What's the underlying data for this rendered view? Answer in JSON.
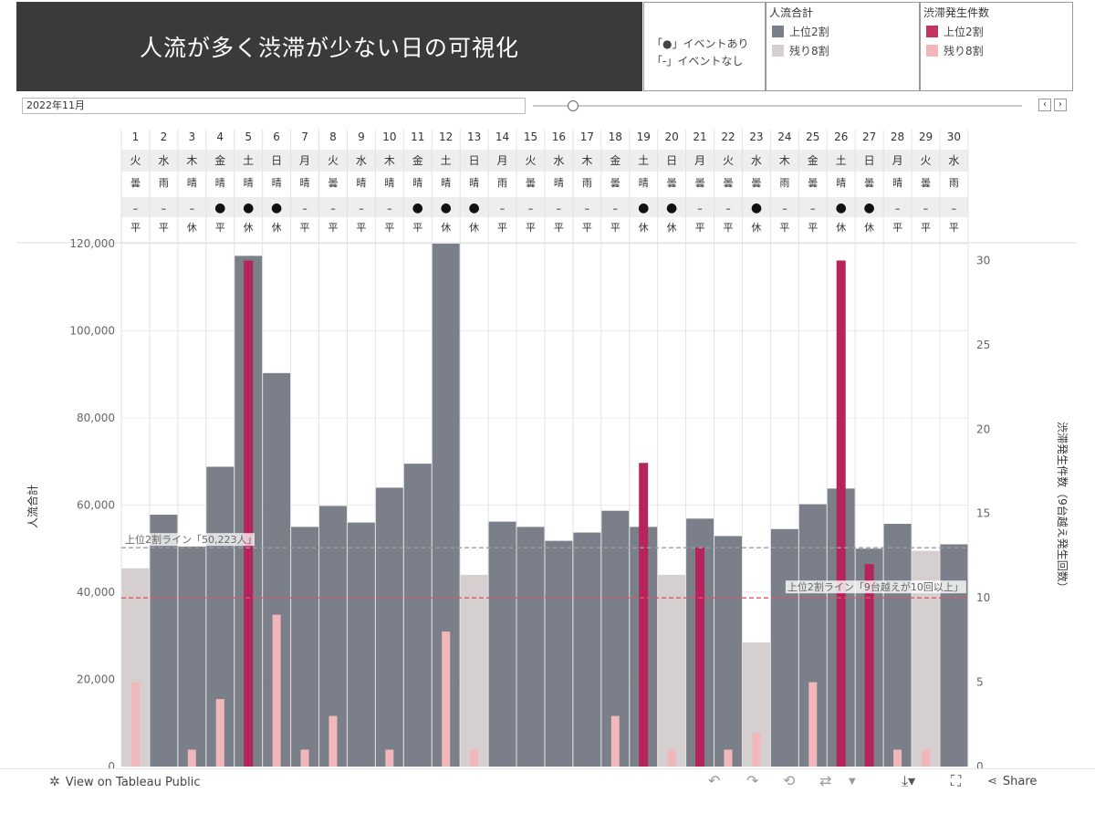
{
  "header": {
    "title": "人流が多く渋滞が少ない日の可視化",
    "event_legend": {
      "with_event": "「●」イベントあり",
      "without_event": "「-」イベントなし"
    },
    "people_legend": {
      "title": "人流合計",
      "top": "上位2割",
      "rest": "残り8割"
    },
    "traffic_legend": {
      "title": "渋滞発生件数",
      "top": "上位2割",
      "rest": "残り8割"
    }
  },
  "filter": {
    "month": "2022年11月",
    "prev_icon": "‹",
    "next_icon": "›"
  },
  "colors": {
    "people_top": "#7b7f89",
    "people_rest": "#d5cfcf",
    "traffic_top": "#b5245a",
    "traffic_rest": "#f2b7bb",
    "line_people": "#9a9ea5",
    "line_traffic": "#e0566a"
  },
  "chart_data": {
    "type": "bar",
    "categories": [
      "1",
      "2",
      "3",
      "4",
      "5",
      "6",
      "7",
      "8",
      "9",
      "10",
      "11",
      "12",
      "13",
      "14",
      "15",
      "16",
      "17",
      "18",
      "19",
      "20",
      "21",
      "22",
      "23",
      "24",
      "25",
      "26",
      "27",
      "28",
      "29",
      "30"
    ],
    "weekday": [
      "火",
      "水",
      "木",
      "金",
      "土",
      "日",
      "月",
      "火",
      "水",
      "木",
      "金",
      "土",
      "日",
      "月",
      "火",
      "水",
      "木",
      "金",
      "土",
      "日",
      "月",
      "火",
      "水",
      "木",
      "金",
      "土",
      "日",
      "月",
      "火",
      "水"
    ],
    "weather": [
      "曇",
      "雨",
      "晴",
      "晴",
      "晴",
      "晴",
      "晴",
      "曇",
      "晴",
      "晴",
      "晴",
      "晴",
      "晴",
      "雨",
      "曇",
      "晴",
      "雨",
      "曇",
      "晴",
      "曇",
      "曇",
      "曇",
      "曇",
      "雨",
      "曇",
      "晴",
      "曇",
      "晴",
      "曇",
      "雨"
    ],
    "event": [
      "–",
      "–",
      "–",
      "●",
      "●",
      "●",
      "–",
      "–",
      "–",
      "–",
      "●",
      "●",
      "●",
      "–",
      "–",
      "–",
      "–",
      "–",
      "●",
      "●",
      "–",
      "–",
      "●",
      "–",
      "–",
      "●",
      "●",
      "–",
      "–",
      "–"
    ],
    "day_type": [
      "平",
      "平",
      "休",
      "平",
      "休",
      "休",
      "平",
      "平",
      "平",
      "平",
      "平",
      "休",
      "休",
      "平",
      "平",
      "平",
      "平",
      "平",
      "休",
      "休",
      "平",
      "平",
      "休",
      "平",
      "平",
      "休",
      "休",
      "平",
      "平",
      "平"
    ],
    "series": [
      {
        "name": "人流合計",
        "values": [
          45500,
          57800,
          50500,
          68800,
          117200,
          90300,
          55000,
          59800,
          56000,
          64000,
          69500,
          120000,
          44000,
          56200,
          55000,
          51800,
          53700,
          58700,
          55000,
          44000,
          56900,
          52900,
          28500,
          54500,
          60200,
          63800,
          50000,
          55700,
          49500,
          51000
        ],
        "group": [
          "rest",
          "top",
          "top",
          "top",
          "top",
          "top",
          "top",
          "top",
          "top",
          "top",
          "top",
          "top",
          "rest",
          "top",
          "top",
          "top",
          "top",
          "top",
          "top",
          "rest",
          "top",
          "top",
          "rest",
          "top",
          "top",
          "top",
          "top",
          "top",
          "rest",
          "top"
        ]
      },
      {
        "name": "渋滞発生件数",
        "values": [
          5,
          0,
          1,
          4,
          30,
          9,
          1,
          3,
          0,
          1,
          0,
          8,
          1,
          0,
          0,
          0,
          0,
          3,
          18,
          1,
          13,
          1,
          2,
          0,
          5,
          30,
          12,
          1,
          1,
          0
        ],
        "group": [
          "rest",
          "rest",
          "rest",
          "rest",
          "top",
          "rest",
          "rest",
          "rest",
          "rest",
          "rest",
          "rest",
          "rest",
          "rest",
          "rest",
          "rest",
          "rest",
          "rest",
          "rest",
          "top",
          "rest",
          "top",
          "rest",
          "rest",
          "rest",
          "rest",
          "top",
          "top",
          "rest",
          "rest",
          "rest"
        ]
      }
    ],
    "ylabel": "人流合計",
    "y2label": "渋滞発生件数（9台越え発生回数）",
    "ylim": [
      0,
      120000
    ],
    "y2lim": [
      0,
      31
    ],
    "yticks": [
      "0",
      "20,000",
      "40,000",
      "60,000",
      "80,000",
      "100,000",
      "120,000"
    ],
    "y2ticks": [
      "0",
      "5",
      "10",
      "15",
      "20",
      "25",
      "30"
    ],
    "ref_lines": [
      {
        "label": "上位2割ライン「50,223人」",
        "value": 50223,
        "axis": "y"
      },
      {
        "label": "上位2割ライン「9台越えが10回以上」",
        "value": 10,
        "axis": "y2"
      }
    ]
  },
  "toolbar": {
    "view_label": "View on Tableau Public",
    "share_label": "Share"
  }
}
